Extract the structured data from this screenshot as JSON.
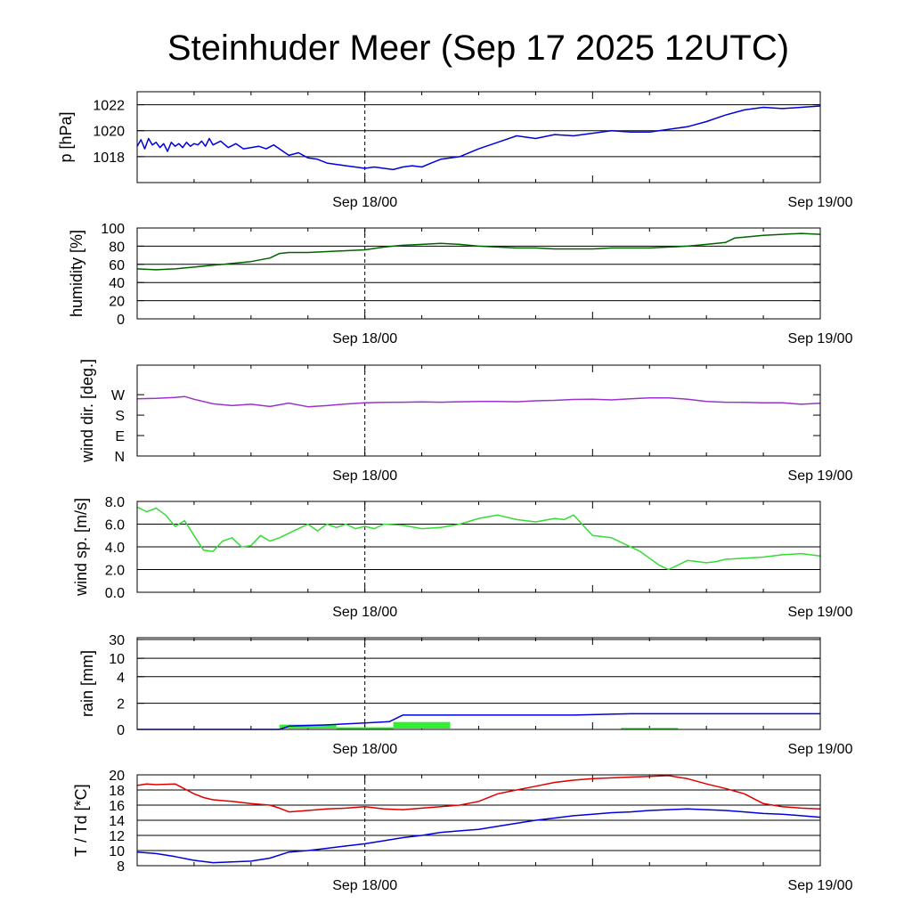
{
  "title": "Steinhuder Meer (Sep 17 2025 12UTC)",
  "chart_data": [
    {
      "type": "line",
      "id": "pressure",
      "ylabel": "p [hPa]",
      "ylim": [
        1016,
        1023
      ],
      "yticks": [
        1018,
        1020,
        1022
      ],
      "gridlines": [
        1018,
        1020,
        1022
      ],
      "x_range_hours": [
        0,
        36
      ],
      "xtick_labels": [
        {
          "hour": 12,
          "label": "Sep 18/00"
        },
        {
          "hour": 36,
          "label": "Sep 19/00"
        }
      ],
      "color": "#0000dd",
      "x": [
        0,
        0.2,
        0.4,
        0.6,
        0.8,
        1.0,
        1.2,
        1.4,
        1.6,
        1.8,
        2.0,
        2.2,
        2.4,
        2.6,
        2.8,
        3.0,
        3.2,
        3.4,
        3.6,
        3.8,
        4.0,
        4.4,
        4.8,
        5.2,
        5.6,
        6.0,
        6.4,
        6.8,
        7.2,
        7.6,
        8.0,
        8.5,
        9.0,
        9.5,
        10.0,
        10.5,
        11.0,
        11.5,
        12.0,
        12.5,
        13.0,
        13.5,
        14.0,
        14.5,
        15.0,
        15.5,
        16.0,
        17.0,
        18.0,
        19.0,
        20.0,
        21.0,
        22.0,
        23.0,
        24.0,
        25.0,
        26.0,
        27.0,
        28.0,
        29.0,
        30.0,
        31.0,
        32.0,
        33.0,
        34.0,
        35.0,
        36.0
      ],
      "values": [
        1018.8,
        1019.3,
        1018.6,
        1019.4,
        1018.9,
        1019.1,
        1018.7,
        1019.0,
        1018.4,
        1019.1,
        1018.8,
        1019.0,
        1018.7,
        1019.1,
        1018.8,
        1019.0,
        1018.9,
        1019.2,
        1018.8,
        1019.4,
        1018.9,
        1019.2,
        1018.7,
        1019.0,
        1018.6,
        1018.7,
        1018.8,
        1018.6,
        1018.9,
        1018.5,
        1018.1,
        1018.3,
        1017.9,
        1017.8,
        1017.5,
        1017.4,
        1017.3,
        1017.2,
        1017.1,
        1017.2,
        1017.1,
        1017.0,
        1017.2,
        1017.3,
        1017.2,
        1017.5,
        1017.8,
        1018.0,
        1018.6,
        1019.1,
        1019.6,
        1019.4,
        1019.7,
        1019.6,
        1019.8,
        1020.0,
        1019.9,
        1019.9,
        1020.1,
        1020.3,
        1020.7,
        1021.2,
        1021.6,
        1021.8,
        1021.7,
        1021.8,
        1021.9
      ]
    },
    {
      "type": "line",
      "id": "humidity",
      "ylabel": "humidity [%]",
      "ylim": [
        0,
        100
      ],
      "yticks": [
        0,
        20,
        40,
        60,
        80,
        100
      ],
      "gridlines": [
        20,
        40,
        60,
        80
      ],
      "x_range_hours": [
        0,
        36
      ],
      "xtick_labels": [
        {
          "hour": 12,
          "label": "Sep 18/00"
        },
        {
          "hour": 36,
          "label": "Sep 19/00"
        }
      ],
      "color": "#006400",
      "x": [
        0,
        1,
        2,
        3,
        4,
        5,
        6,
        7,
        7.5,
        8,
        9,
        10,
        11,
        12,
        13,
        14,
        15,
        16,
        17,
        18,
        19,
        20,
        21,
        22,
        23,
        24,
        25,
        26,
        27,
        28,
        29,
        30,
        31,
        31.5,
        32,
        33,
        34,
        35,
        36
      ],
      "values": [
        55,
        54,
        55,
        57,
        59,
        61,
        63,
        67,
        72,
        73,
        73,
        74,
        75,
        76,
        79,
        81,
        82,
        83,
        82,
        80,
        79,
        78,
        78,
        77,
        77,
        77,
        78,
        78,
        78,
        79,
        80,
        82,
        84,
        89,
        90,
        92,
        93,
        94,
        93
      ]
    },
    {
      "type": "line",
      "id": "wind_direction",
      "ylabel": "wind dir. [deg.]",
      "ylim": [
        0,
        400
      ],
      "yticks": [
        {
          "value": 0,
          "label": "N"
        },
        {
          "value": 90,
          "label": "E"
        },
        {
          "value": 180,
          "label": "S"
        },
        {
          "value": 270,
          "label": "W"
        }
      ],
      "x_range_hours": [
        0,
        36
      ],
      "xtick_labels": [
        {
          "hour": 12,
          "label": "Sep 18/00"
        },
        {
          "hour": 36,
          "label": "Sep 19/00"
        }
      ],
      "color": "#9933cc",
      "x": [
        0,
        1,
        2,
        2.5,
        3,
        4,
        5,
        6,
        7,
        8,
        9,
        10,
        11,
        12,
        13,
        14,
        15,
        16,
        17,
        18,
        19,
        20,
        21,
        22,
        23,
        24,
        25,
        26,
        27,
        28,
        29,
        30,
        31,
        32,
        33,
        34,
        35,
        36
      ],
      "values": [
        252,
        254,
        258,
        262,
        250,
        230,
        222,
        228,
        218,
        233,
        217,
        222,
        229,
        234,
        236,
        237,
        238,
        237,
        239,
        240,
        240,
        239,
        243,
        245,
        249,
        250,
        247,
        252,
        256,
        256,
        250,
        240,
        237,
        236,
        234,
        234,
        228,
        232
      ]
    },
    {
      "type": "line",
      "id": "wind_speed",
      "ylabel": "wind sp. [m/s]",
      "ylim": [
        0,
        8
      ],
      "yticks": [
        0,
        2,
        4,
        6,
        8
      ],
      "ytick_labels": [
        "0.0",
        "2.0",
        "4.0",
        "6.0",
        "8.0"
      ],
      "gridlines": [
        2,
        4,
        6
      ],
      "x_range_hours": [
        0,
        36
      ],
      "xtick_labels": [
        {
          "hour": 12,
          "label": "Sep 18/00"
        },
        {
          "hour": 36,
          "label": "Sep 19/00"
        }
      ],
      "color": "#33dd33",
      "x": [
        0,
        0.5,
        1,
        1.5,
        2,
        2.5,
        3,
        3.5,
        4,
        4.5,
        5,
        5.5,
        6,
        6.5,
        7,
        7.5,
        8,
        8.5,
        9,
        9.5,
        10,
        10.5,
        11,
        11.5,
        12,
        12.5,
        13,
        14,
        15,
        16,
        17,
        18,
        19,
        20,
        21,
        22,
        22.5,
        23,
        24,
        25,
        26,
        26.5,
        27,
        27.5,
        28,
        29,
        30,
        30.5,
        31,
        32,
        33,
        34,
        35,
        36
      ],
      "values": [
        7.5,
        7.1,
        7.4,
        6.8,
        5.8,
        6.3,
        5.0,
        3.7,
        3.6,
        4.5,
        4.8,
        4.0,
        4.1,
        5.0,
        4.5,
        4.8,
        5.2,
        5.6,
        6.0,
        5.4,
        6.0,
        5.7,
        6.0,
        5.6,
        5.8,
        5.6,
        6.0,
        5.9,
        5.6,
        5.7,
        6.0,
        6.5,
        6.8,
        6.4,
        6.2,
        6.5,
        6.4,
        6.8,
        5.0,
        4.8,
        4.0,
        3.6,
        3.0,
        2.4,
        2.0,
        2.8,
        2.6,
        2.7,
        2.9,
        3.0,
        3.1,
        3.3,
        3.4,
        3.2
      ]
    },
    {
      "type": "line",
      "id": "rain",
      "ylabel": "rain [mm]",
      "ylim": [
        0,
        30
      ],
      "yticks": [
        0,
        2,
        4,
        10,
        30
      ],
      "gridlines": [
        2,
        4,
        10,
        30
      ],
      "x_range_hours": [
        0,
        36
      ],
      "xtick_labels": [
        {
          "hour": 12,
          "label": "Sep 18/00"
        },
        {
          "hour": 36,
          "label": "Sep 19/00"
        }
      ],
      "accumulated": {
        "color": "#0000dd",
        "x": [
          0,
          7.5,
          8,
          10,
          12,
          13.3,
          14,
          17,
          20,
          23,
          26,
          29,
          32,
          36
        ],
        "values": [
          0,
          0,
          0.25,
          0.35,
          0.5,
          0.6,
          1.1,
          1.1,
          1.1,
          1.1,
          1.2,
          1.2,
          1.2,
          1.2
        ]
      },
      "hourly_bars": {
        "color": "#33ee33",
        "bars": [
          {
            "start": 7.5,
            "end": 10.5,
            "value": 0.3
          },
          {
            "start": 10.5,
            "end": 13.5,
            "value": 0.1
          },
          {
            "start": 13.5,
            "end": 16.5,
            "value": 0.5
          },
          {
            "start": 25.5,
            "end": 28.5,
            "value": 0.05
          }
        ]
      }
    },
    {
      "type": "line",
      "id": "temperature_dewpoint",
      "ylabel": "T / Td [*C]",
      "ylim": [
        8,
        20
      ],
      "yticks": [
        8,
        10,
        12,
        14,
        16,
        18,
        20
      ],
      "gridlines": [
        10,
        12,
        14,
        16,
        18
      ],
      "x_range_hours": [
        0,
        36
      ],
      "xtick_labels": [
        {
          "hour": 12,
          "label": "Sep 18/00"
        },
        {
          "hour": 36,
          "label": "Sep 19/00"
        }
      ],
      "series": [
        {
          "name": "T",
          "color": "#dd0000",
          "x": [
            0,
            0.5,
            1,
            2,
            3,
            3.5,
            4,
            5,
            6,
            7,
            7.5,
            8,
            9,
            10,
            11,
            12,
            13,
            14,
            15,
            16,
            17,
            18,
            19,
            20,
            21,
            22,
            23,
            24,
            25,
            26,
            27,
            28,
            29,
            30,
            31,
            32,
            33,
            34,
            35,
            36
          ],
          "values": [
            18.6,
            18.8,
            18.7,
            18.8,
            17.5,
            17.0,
            16.7,
            16.5,
            16.2,
            16.0,
            15.6,
            15.1,
            15.3,
            15.5,
            15.6,
            15.8,
            15.5,
            15.4,
            15.6,
            15.8,
            16.0,
            16.5,
            17.5,
            18.0,
            18.5,
            19.0,
            19.3,
            19.5,
            19.6,
            19.7,
            19.8,
            19.9,
            19.5,
            18.8,
            18.2,
            17.5,
            16.2,
            15.8,
            15.6,
            15.5
          ]
        },
        {
          "name": "Td",
          "color": "#0000dd",
          "x": [
            0,
            1,
            2,
            3,
            4,
            5,
            6,
            7,
            8,
            9,
            10,
            11,
            12,
            13,
            14,
            15,
            16,
            17,
            18,
            19,
            20,
            21,
            22,
            23,
            24,
            25,
            26,
            27,
            28,
            29,
            30,
            31,
            32,
            33,
            34,
            35,
            36
          ],
          "values": [
            9.8,
            9.6,
            9.2,
            8.7,
            8.4,
            8.5,
            8.6,
            9.0,
            9.8,
            10.0,
            10.3,
            10.6,
            10.9,
            11.3,
            11.7,
            12.0,
            12.4,
            12.6,
            12.8,
            13.2,
            13.6,
            14.0,
            14.3,
            14.6,
            14.8,
            15.0,
            15.1,
            15.3,
            15.4,
            15.5,
            15.4,
            15.3,
            15.1,
            14.9,
            14.8,
            14.6,
            14.4
          ]
        }
      ]
    }
  ]
}
